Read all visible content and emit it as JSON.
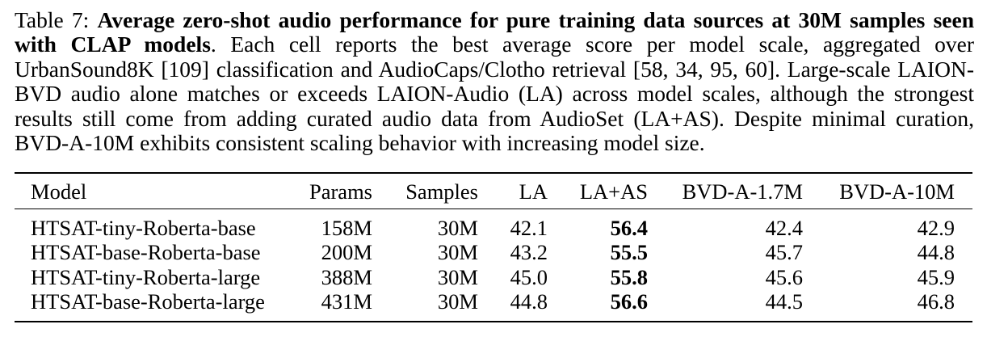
{
  "caption": {
    "label": "Table 7:",
    "bold_title": "Average zero-shot audio performance for pure training data sources at 30M samples seen with CLAP models",
    "body": ". Each cell reports the best average score per model scale, aggregated over UrbanSound8K [109] classification and AudioCaps/Clotho retrieval [58, 34, 95, 60]. Large-scale LAION-BVD audio alone matches or exceeds LAION-Audio (LA) across model scales, although the strongest results still come from adding curated audio data from AudioSet (LA+AS). Despite minimal curation, BVD-A-10M exhibits consistent scaling behavior with increasing model size."
  },
  "table": {
    "headers": [
      "Model",
      "Params",
      "Samples",
      "LA",
      "LA+AS",
      "BVD-A-1.7M",
      "BVD-A-10M"
    ],
    "rows": [
      [
        "HTSAT-tiny-Roberta-base",
        "158M",
        "30M",
        "42.1",
        "56.4",
        "42.4",
        "42.9"
      ],
      [
        "HTSAT-base-Roberta-base",
        "200M",
        "30M",
        "43.2",
        "55.5",
        "45.7",
        "44.8"
      ],
      [
        "HTSAT-tiny-Roberta-large",
        "388M",
        "30M",
        "45.0",
        "55.8",
        "45.6",
        "45.9"
      ],
      [
        "HTSAT-base-Roberta-large",
        "431M",
        "30M",
        "44.8",
        "56.6",
        "44.5",
        "46.8"
      ]
    ],
    "bold_column": "LA+AS"
  }
}
